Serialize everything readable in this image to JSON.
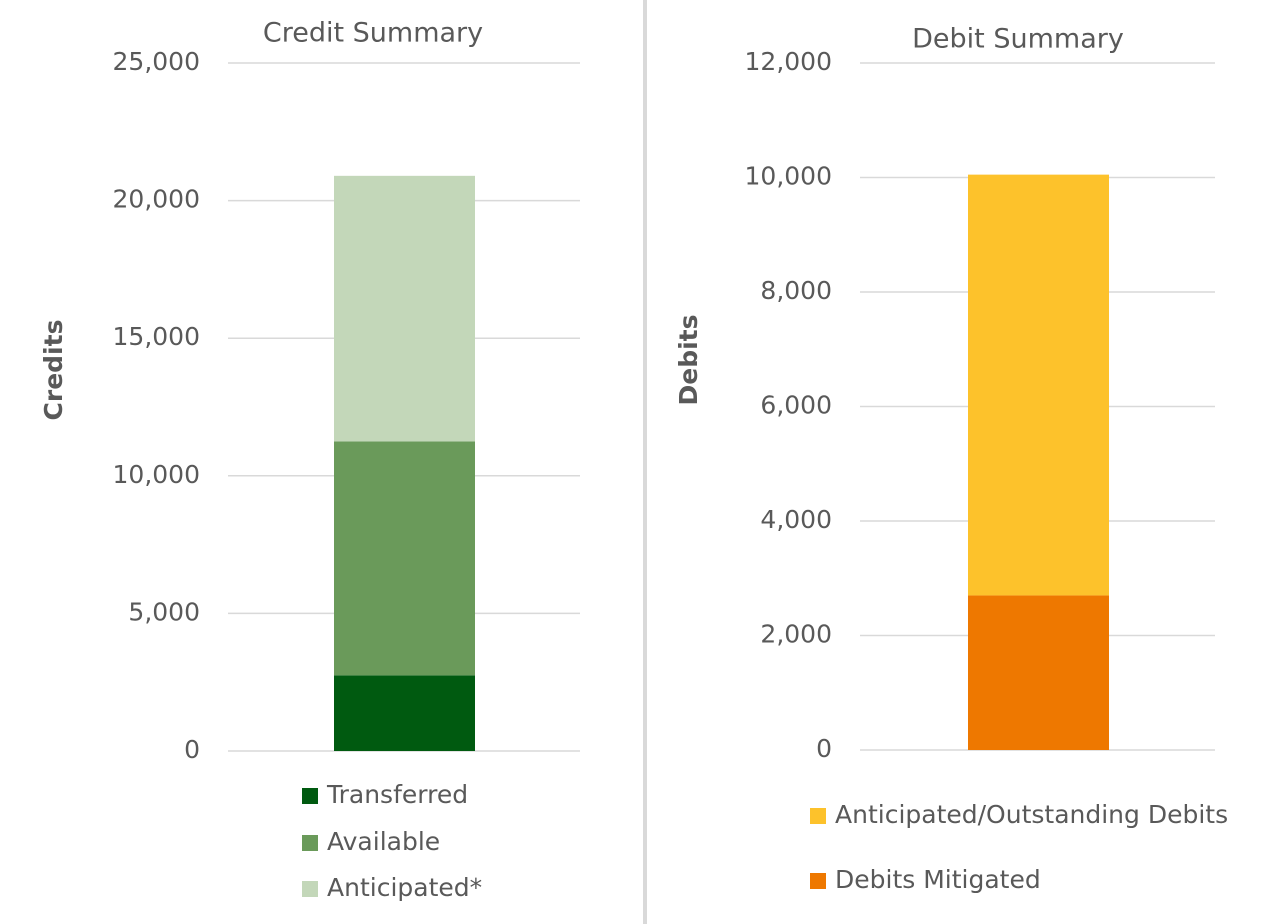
{
  "chart_data": [
    {
      "type": "stacked-bar",
      "title": "Credit Summary",
      "y_label": "Credits",
      "series": [
        {
          "name": "Transferred",
          "color": "#005a10",
          "values": [
            2750
          ]
        },
        {
          "name": "Available",
          "color": "#6a9a5a",
          "values": [
            8500
          ]
        },
        {
          "name": "Anticipated*",
          "color": "#c3d7b9",
          "values": [
            9650
          ]
        }
      ],
      "ylim": [
        0,
        25000
      ],
      "yticks": [
        0,
        {
          "value": 5000,
          "label": "5,000"
        },
        {
          "value": 10000,
          "label": "10,000"
        },
        {
          "value": 15000,
          "label": "15,000"
        },
        {
          "value": 20000,
          "label": "20,000"
        },
        {
          "value": 25000,
          "label": "25,000"
        }
      ],
      "grid": true,
      "legend": "bottom"
    },
    {
      "type": "stacked-bar",
      "title": "Debit Summary",
      "y_label": "Debits",
      "series": [
        {
          "name": "Debits Mitigated",
          "color": "#ee7800",
          "values": [
            2700
          ]
        },
        {
          "name": "Anticipated/Outstanding Debits",
          "color": "#fdc22b",
          "values": [
            7350
          ]
        }
      ],
      "ylim": [
        0,
        12000
      ],
      "yticks": [
        0,
        {
          "value": 2000,
          "label": "2,000"
        },
        {
          "value": 4000,
          "label": "4,000"
        },
        {
          "value": 6000,
          "label": "6,000"
        },
        {
          "value": 8000,
          "label": "8,000"
        },
        {
          "value": 10000,
          "label": "10,000"
        },
        {
          "value": 12000,
          "label": "12,000"
        }
      ],
      "grid": true,
      "legend": "bottom"
    }
  ]
}
